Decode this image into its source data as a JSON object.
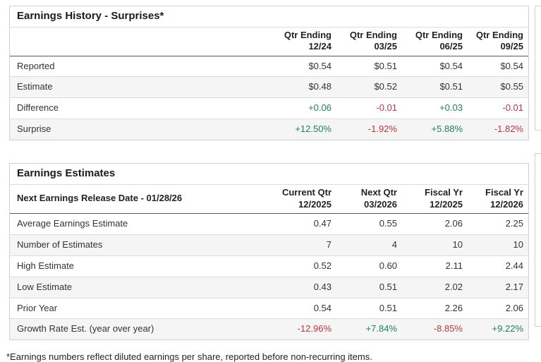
{
  "colors": {
    "positive": "#1d7e64",
    "negative": "#c2333f",
    "text": "#333333",
    "border_light": "#dddddd",
    "card_border": "#d2d2d2",
    "header_rule": "#595959",
    "row_alt": "#f5f5f5"
  },
  "history": {
    "title": "Earnings History - Surprises*",
    "columns": [
      {
        "line1": "Qtr Ending",
        "line2": "12/24"
      },
      {
        "line1": "Qtr Ending",
        "line2": "03/25"
      },
      {
        "line1": "Qtr Ending",
        "line2": "06/25"
      },
      {
        "line1": "Qtr Ending",
        "line2": "09/25"
      }
    ],
    "rows": [
      {
        "label": "Reported",
        "values": [
          "$0.54",
          "$0.51",
          "$0.54",
          "$0.54"
        ]
      },
      {
        "label": "Estimate",
        "values": [
          "$0.48",
          "$0.52",
          "$0.51",
          "$0.55"
        ]
      },
      {
        "label": "Difference",
        "values": [
          "+0.06",
          "-0.01",
          "+0.03",
          "-0.01"
        ]
      },
      {
        "label": "Surprise",
        "values": [
          "+12.50%",
          "-1.92%",
          "+5.88%",
          "-1.82%"
        ]
      }
    ]
  },
  "estimates": {
    "title": "Earnings Estimates",
    "release_date_label": "Next Earnings Release Date - 01/28/26",
    "columns": [
      {
        "line1": "Current Qtr",
        "line2": "12/2025"
      },
      {
        "line1": "Next Qtr",
        "line2": "03/2026"
      },
      {
        "line1": "Fiscal Yr",
        "line2": "12/2025"
      },
      {
        "line1": "Fiscal Yr",
        "line2": "12/2026"
      }
    ],
    "rows": [
      {
        "label": "Average Earnings Estimate",
        "values": [
          "0.47",
          "0.55",
          "2.06",
          "2.25"
        ]
      },
      {
        "label": "Number of Estimates",
        "values": [
          "7",
          "4",
          "10",
          "10"
        ]
      },
      {
        "label": "High Estimate",
        "values": [
          "0.52",
          "0.60",
          "2.11",
          "2.44"
        ]
      },
      {
        "label": "Low Estimate",
        "values": [
          "0.43",
          "0.51",
          "2.02",
          "2.17"
        ]
      },
      {
        "label": "Prior Year",
        "values": [
          "0.54",
          "0.51",
          "2.26",
          "2.06"
        ]
      },
      {
        "label": "Growth Rate Est. (year over year)",
        "values": [
          "-12.96%",
          "+7.84%",
          "-8.85%",
          "+9.22%"
        ]
      }
    ]
  },
  "footnote": "*Earnings numbers reflect diluted earnings per share, reported before non-recurring items."
}
